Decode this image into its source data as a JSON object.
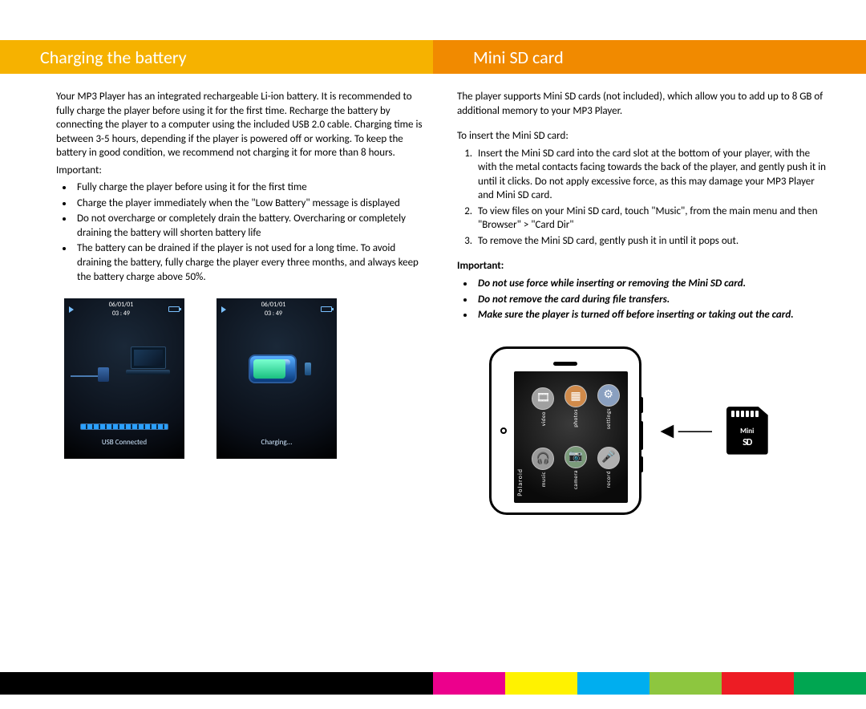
{
  "colors": {
    "header_left_bg": "#f6b200",
    "header_right_bg": "#f18a00",
    "footer": [
      "#ec008c",
      "#fff200",
      "#00aeef",
      "#8dc63f",
      "#ed1c24",
      "#00a651"
    ],
    "page_bg": "#ffffff",
    "text": "#000000"
  },
  "header": {
    "left_title": "Charging the battery",
    "right_title": "Mini SD card"
  },
  "left": {
    "intro": "Your MP3 Player has an integrated rechargeable Li-ion battery. It is recommended to fully charge the player before using it for the first time. Recharge the battery by connecting the player to a computer using the included USB 2.0 cable. Charging time is between 3-5 hours, depending if the player is powered off or working. To keep the battery in good condition, we recommend not charging it for more than 8 hours.",
    "important_label": "Important:",
    "bullets": [
      "Fully charge the player before using it for the first time",
      "Charge the player immediately when the \"Low Battery\" message is displayed",
      "Do not overcharge or completely drain the battery. Overcharing or completely draining the battery will shorten battery life",
      "The battery can be drained if the player is not used for a  long time. To avoid draining the battery, fully charge the player every three months, and always keep the battery charge above 50%."
    ],
    "screen1": {
      "datetime_top": "06/01/01",
      "datetime_bottom": "03 : 49",
      "caption": "USB Connected"
    },
    "screen2": {
      "datetime_top": "06/01/01",
      "datetime_bottom": "03 : 49",
      "caption": "Charging..."
    }
  },
  "right": {
    "intro": "The player supports Mini SD cards (not included), which allow you to add up to 8 GB of additional memory to your MP3 Player.",
    "insert_label": "To insert the Mini SD card:",
    "steps": [
      "Insert the Mini SD card into the card slot at the bottom of your player, with the with the metal contacts facing towards the back of the player, and gently push it in until it clicks. Do not apply excessive force, as this may damage your MP3 Player and Mini SD card.",
      "To view files on your Mini SD card, touch \"Music\", from the main menu and then \"Browser\" > \"Card Dir\"",
      "To remove the Mini SD card, gently push it in until it pops out."
    ],
    "important_label": "Important:",
    "important_bullets": [
      "Do not use force while inserting or removing the Mini SD card.",
      "Do not remove the card during file transfers.",
      "Make sure the player is turned off before inserting or taking out the card."
    ],
    "device_brand": "Polaroid",
    "app_icons": [
      {
        "glyph": "🎞",
        "label": "video",
        "color": "#a0a0a0"
      },
      {
        "glyph": "▦",
        "label": "photos",
        "color": "#d08a4a"
      },
      {
        "glyph": "⚙",
        "label": "settings",
        "color": "#8aa0c0"
      },
      {
        "glyph": "🎧",
        "label": "music",
        "color": "#9a9a9a"
      },
      {
        "glyph": "📷",
        "label": "camera",
        "color": "#7a9a7a"
      },
      {
        "glyph": "🎤",
        "label": "record",
        "color": "#b0b0b0"
      }
    ],
    "sd_label_top": "Mini",
    "sd_label_bottom": "SD"
  }
}
